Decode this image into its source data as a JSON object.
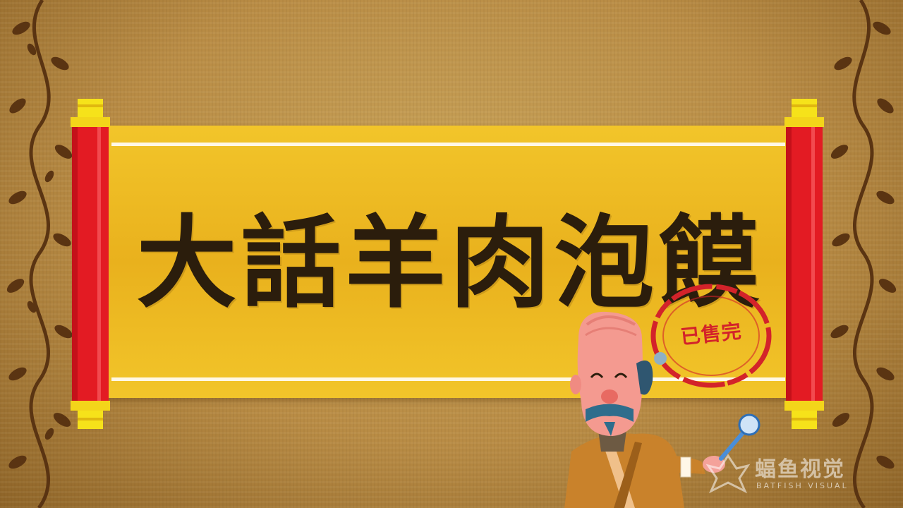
{
  "title": "大話羊肉泡饃",
  "stamp": "已售完",
  "watermark": {
    "name": "蝠鱼视觉",
    "subtitle": "BATFISH VISUAL"
  },
  "colors": {
    "scroll_paper": "#f2c52a",
    "scroll_rod": "#e31b23",
    "rod_cap": "#f6e21a",
    "title_ink": "#2b1d0c",
    "stamp_red": "#d3232a",
    "background": "#b98c45"
  },
  "icons": [
    "vine-ornament-icon",
    "spoon-icon",
    "batfish-logo-icon"
  ]
}
